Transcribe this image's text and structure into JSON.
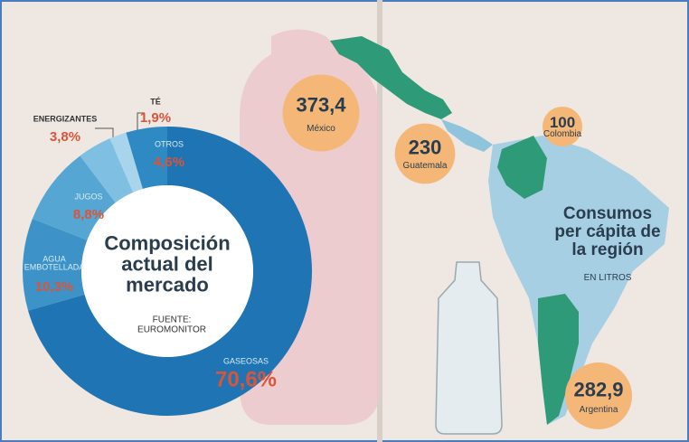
{
  "chart_data": [
    {
      "type": "pie",
      "title": "Composición actual del mercado",
      "source": "FUENTE: EUROMONITOR",
      "categories": [
        "GASEOSAS",
        "AGUA EMBOTELLADA",
        "JUGOS",
        "ENERGIZANTES",
        "TÉ",
        "OTROS"
      ],
      "values": [
        70.6,
        10.3,
        8.8,
        3.8,
        1.9,
        4.6
      ],
      "value_labels": [
        "70,6%",
        "10,3%",
        "8,8%",
        "3,8%",
        "1,9%",
        "4,6%"
      ],
      "colors": [
        "#1f74b3",
        "#3d93c8",
        "#55a6d3",
        "#7fbfe2",
        "#a9d5ec",
        "#2f89c2"
      ]
    },
    {
      "type": "bubble",
      "title": "Consumos per cápita de la región",
      "subtitle": "EN LITROS",
      "categories": [
        "México",
        "Guatemala",
        "Colombia",
        "Argentina"
      ],
      "values": [
        373.4,
        230,
        100,
        282.9
      ],
      "value_labels": [
        "373,4",
        "230",
        "100",
        "282,9"
      ],
      "color": "#f4b777"
    }
  ]
}
